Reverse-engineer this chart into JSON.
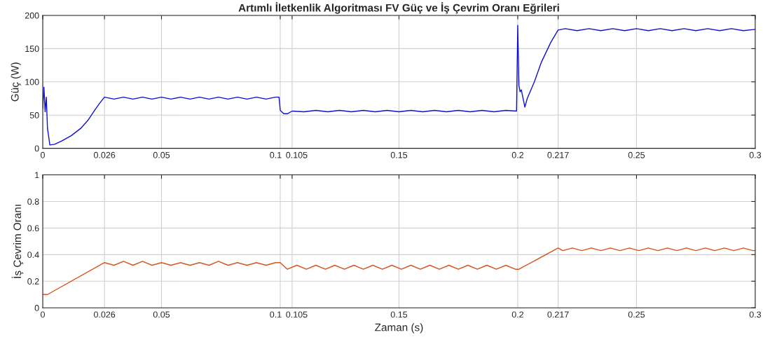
{
  "chart_data": [
    {
      "type": "line",
      "title": "Artımlı İletkenlik Algoritması FV Güç ve İş Çevrim Oranı Eğrileri",
      "ylabel": "Güç (W)",
      "xlim": [
        0,
        0.3
      ],
      "ylim": [
        0,
        200
      ],
      "xticks": [
        0,
        0.026,
        0.05,
        0.1,
        0.105,
        0.15,
        0.2,
        0.217,
        0.25,
        0.3
      ],
      "yticks": [
        0,
        50,
        100,
        150,
        200
      ],
      "grid": true,
      "line_style": "solid",
      "marker": "none",
      "series": [
        {
          "color": "#1010d0",
          "x": [
            0,
            0.0005,
            0.001,
            0.0015,
            0.002,
            0.003,
            0.005,
            0.008,
            0.012,
            0.016,
            0.019,
            0.022,
            0.024,
            0.026,
            0.03,
            0.034,
            0.038,
            0.042,
            0.046,
            0.05,
            0.054,
            0.058,
            0.062,
            0.066,
            0.07,
            0.074,
            0.078,
            0.082,
            0.086,
            0.09,
            0.094,
            0.098,
            0.0995,
            0.1,
            0.1015,
            0.103,
            0.105,
            0.11,
            0.115,
            0.12,
            0.125,
            0.13,
            0.135,
            0.14,
            0.145,
            0.15,
            0.155,
            0.16,
            0.165,
            0.17,
            0.175,
            0.18,
            0.185,
            0.19,
            0.195,
            0.1995,
            0.2,
            0.2005,
            0.201,
            0.2015,
            0.203,
            0.204,
            0.207,
            0.21,
            0.214,
            0.217,
            0.22,
            0.225,
            0.23,
            0.235,
            0.24,
            0.245,
            0.25,
            0.255,
            0.26,
            0.265,
            0.27,
            0.275,
            0.28,
            0.285,
            0.29,
            0.295,
            0.3
          ],
          "values": [
            60,
            92,
            55,
            77,
            30,
            5,
            6,
            11,
            19,
            30,
            42,
            58,
            68,
            77,
            74,
            77,
            74,
            77,
            74,
            77,
            74,
            77,
            74,
            77,
            74,
            77,
            74,
            77,
            74,
            77,
            74,
            77,
            77,
            57,
            52,
            52,
            56,
            55,
            57,
            55,
            57,
            55,
            57,
            55,
            57,
            55,
            57,
            55,
            57,
            55,
            57,
            55,
            57,
            55,
            57,
            56,
            185,
            95,
            85,
            88,
            62,
            75,
            100,
            130,
            160,
            178,
            180,
            177,
            180,
            177,
            180,
            177,
            180,
            177,
            180,
            177,
            180,
            177,
            180,
            177,
            180,
            177,
            179
          ]
        }
      ]
    },
    {
      "type": "line",
      "xlabel": "Zaman (s)",
      "ylabel": "İş Çevrim Oranı",
      "xlim": [
        0,
        0.3
      ],
      "ylim": [
        0,
        1
      ],
      "xticks": [
        0,
        0.026,
        0.05,
        0.1,
        0.105,
        0.15,
        0.2,
        0.217,
        0.25,
        0.3
      ],
      "yticks": [
        0,
        0.2,
        0.4,
        0.6,
        0.8,
        1
      ],
      "grid": true,
      "line_style": "solid",
      "marker": "none",
      "series": [
        {
          "color": "#d95319",
          "x": [
            0,
            0.002,
            0.026,
            0.03,
            0.034,
            0.038,
            0.042,
            0.046,
            0.05,
            0.054,
            0.058,
            0.062,
            0.066,
            0.07,
            0.074,
            0.078,
            0.082,
            0.086,
            0.09,
            0.094,
            0.098,
            0.1,
            0.103,
            0.107,
            0.111,
            0.115,
            0.119,
            0.123,
            0.127,
            0.131,
            0.135,
            0.139,
            0.143,
            0.147,
            0.151,
            0.155,
            0.159,
            0.163,
            0.167,
            0.171,
            0.175,
            0.179,
            0.183,
            0.187,
            0.191,
            0.195,
            0.199,
            0.2005,
            0.217,
            0.219,
            0.223,
            0.227,
            0.231,
            0.235,
            0.239,
            0.243,
            0.247,
            0.251,
            0.255,
            0.259,
            0.263,
            0.267,
            0.271,
            0.275,
            0.279,
            0.283,
            0.287,
            0.291,
            0.295,
            0.299,
            0.3
          ],
          "values": [
            0.1,
            0.1,
            0.34,
            0.32,
            0.35,
            0.32,
            0.35,
            0.32,
            0.34,
            0.32,
            0.34,
            0.32,
            0.34,
            0.32,
            0.35,
            0.32,
            0.34,
            0.32,
            0.34,
            0.32,
            0.34,
            0.34,
            0.29,
            0.32,
            0.29,
            0.32,
            0.29,
            0.32,
            0.29,
            0.32,
            0.29,
            0.32,
            0.29,
            0.32,
            0.29,
            0.32,
            0.29,
            0.32,
            0.29,
            0.32,
            0.29,
            0.32,
            0.29,
            0.32,
            0.29,
            0.32,
            0.29,
            0.29,
            0.45,
            0.43,
            0.45,
            0.43,
            0.45,
            0.43,
            0.45,
            0.43,
            0.45,
            0.43,
            0.45,
            0.43,
            0.45,
            0.43,
            0.45,
            0.43,
            0.45,
            0.43,
            0.45,
            0.43,
            0.45,
            0.43,
            0.43
          ]
        }
      ]
    }
  ]
}
